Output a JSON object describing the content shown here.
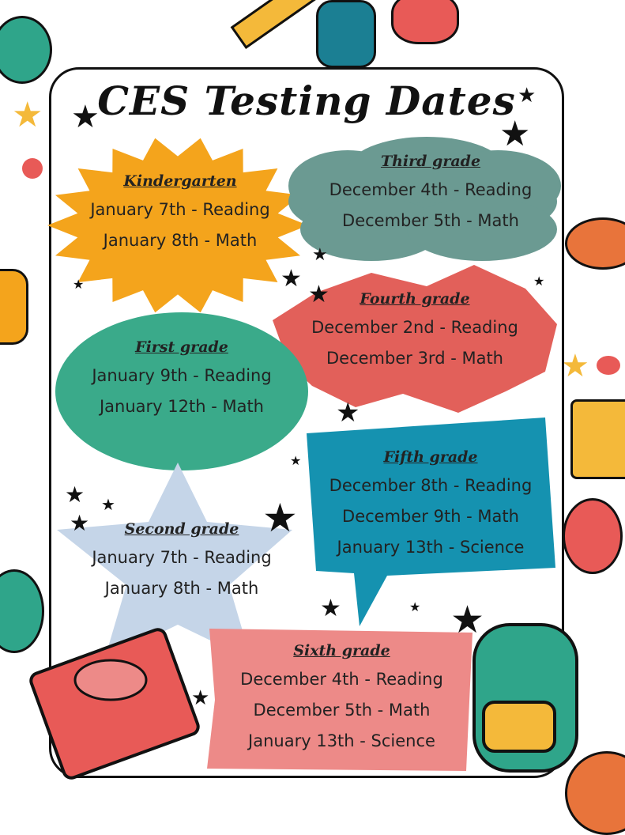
{
  "title": "CES Testing Dates",
  "colors": {
    "kindergarten": "#f4a41c",
    "third": "#6b9a92",
    "fourth": "#e2605a",
    "first": "#3aaa8a",
    "fifth": "#1592b0",
    "second": "#c5d5e8",
    "sixth": "#ed8a88"
  },
  "grades": {
    "kindergarten": {
      "heading": "Kindergarten",
      "lines": [
        "January 7th - Reading",
        "January 8th - Math"
      ]
    },
    "third": {
      "heading": "Third grade",
      "lines": [
        "December 4th - Reading",
        "December 5th - Math"
      ]
    },
    "fourth": {
      "heading": "Fourth grade",
      "lines": [
        "December 2nd - Reading",
        "December 3rd - Math"
      ]
    },
    "first": {
      "heading": "First grade",
      "lines": [
        "January 9th - Reading",
        "January 12th - Math"
      ]
    },
    "fifth": {
      "heading": "Fifth grade",
      "lines": [
        "December 8th - Reading",
        "December 9th - Math",
        "January 13th - Science"
      ]
    },
    "second": {
      "heading": "Second grade",
      "lines": [
        "January 7th - Reading",
        "January 8th - Math"
      ]
    },
    "sixth": {
      "heading": "Sixth grade",
      "lines": [
        "December 4th - Reading",
        "December 5th - Math",
        "January 13th - Science"
      ]
    }
  }
}
